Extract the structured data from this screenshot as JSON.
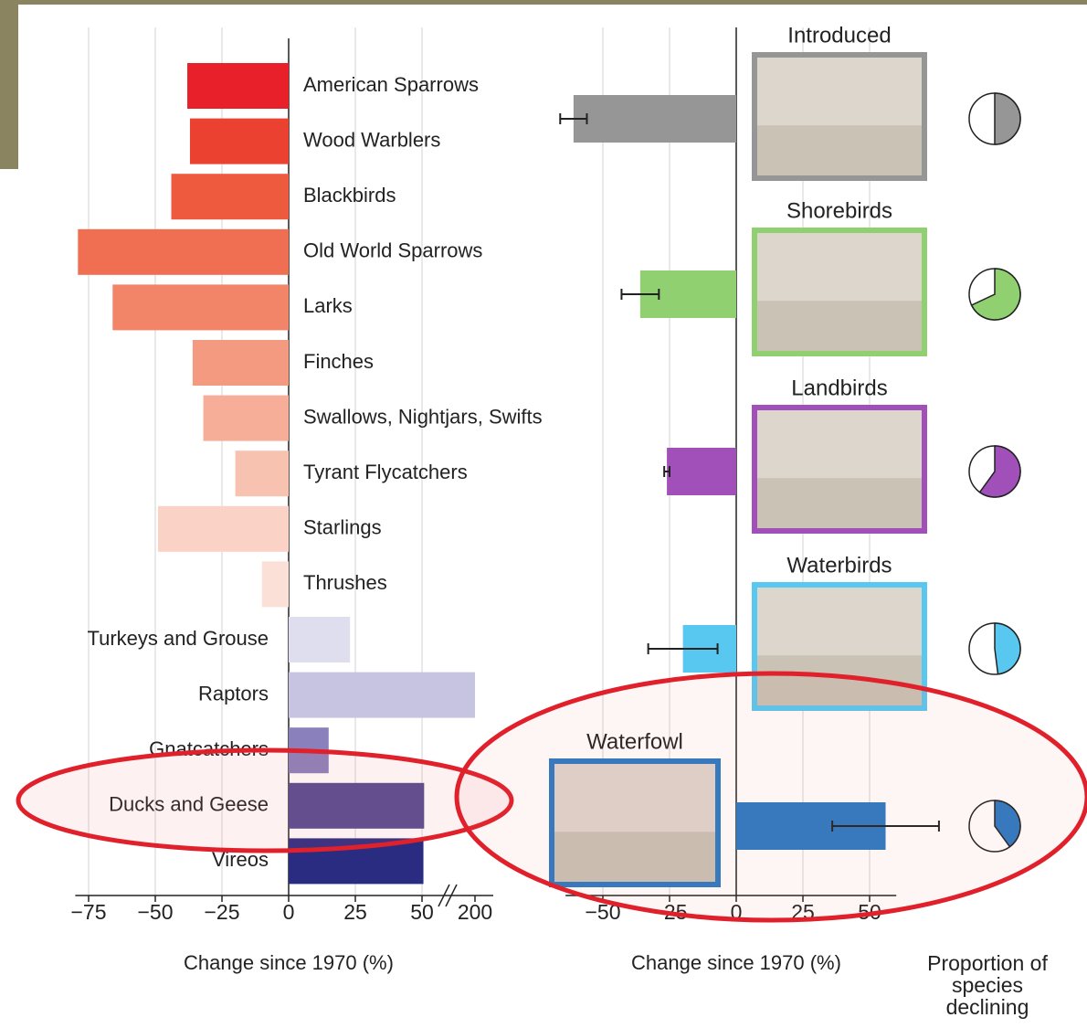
{
  "chart_data": [
    {
      "type": "bar",
      "orientation": "horizontal",
      "categories": [
        "American Sparrows",
        "Wood Warblers",
        "Blackbirds",
        "Old World Sparrows",
        "Larks",
        "Finches",
        "Swallows, Nightjars, Swifts",
        "Tyrant Flycatchers",
        "Starlings",
        "Thrushes",
        "Turkeys and Grouse",
        "Raptors",
        "Gnatcatchers",
        "Ducks and Geese",
        "Vireos"
      ],
      "values": [
        -38,
        -37,
        -44,
        -79,
        -66,
        -36,
        -32,
        -20,
        -49,
        -10,
        23,
        200,
        15,
        56,
        54
      ],
      "colors": [
        "#e8202a",
        "#eb4130",
        "#ee5a3e",
        "#f06e52",
        "#f28468",
        "#f49a80",
        "#f6ae98",
        "#f8c2b0",
        "#fad2c6",
        "#fbe0d8",
        "#dedeee",
        "#c6c4e0",
        "#8a80bc",
        "#554a90",
        "#2a2c82"
      ],
      "xlim": [
        -80,
        205
      ],
      "xticks": [
        {
          "value": -75,
          "label": "−75"
        },
        {
          "value": -50,
          "label": "−50"
        },
        {
          "value": -25,
          "label": "−25"
        },
        0,
        25,
        50,
        200
      ],
      "xlabel": "Change since 1970 (%)",
      "grid": true
    },
    {
      "type": "bar",
      "orientation": "horizontal",
      "categories": [
        "Introduced",
        "Shorebirds",
        "Landbirds",
        "Waterbirds",
        "Waterfowl"
      ],
      "values": [
        -61,
        -36,
        -26,
        -20,
        56
      ],
      "errors": [
        5,
        7,
        1,
        13,
        20
      ],
      "colors": [
        "#969696",
        "#90d070",
        "#a050b8",
        "#58c8f0",
        "#2a7ac4"
      ],
      "xlim": [
        -64,
        60
      ],
      "xticks": [
        {
          "value": -50,
          "label": "−50"
        },
        {
          "value": -25,
          "label": "−25"
        },
        0,
        25,
        50
      ],
      "xlabel": "Change since 1970 (%)",
      "grid": true,
      "proportion_declining": {
        "label": "Proportion of species declining",
        "values": [
          50,
          68,
          60,
          48,
          40
        ]
      }
    }
  ]
}
